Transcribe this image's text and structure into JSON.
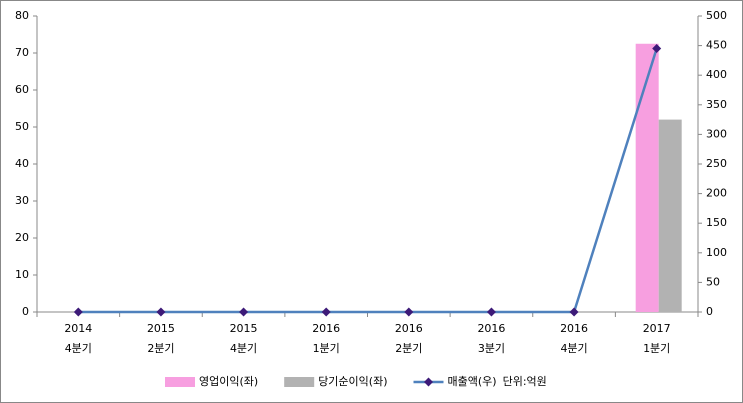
{
  "chart_data": {
    "type": "bar-line",
    "categories": [
      [
        "2014",
        "4분기"
      ],
      [
        "2015",
        "2분기"
      ],
      [
        "2015",
        "4분기"
      ],
      [
        "2016",
        "1분기"
      ],
      [
        "2016",
        "2분기"
      ],
      [
        "2016",
        "3분기"
      ],
      [
        "2016",
        "4분기"
      ],
      [
        "2017",
        "1분기"
      ]
    ],
    "series": [
      {
        "name": "영업이익(좌)",
        "type": "bar",
        "color": "#f79fe0",
        "values": [
          0,
          0,
          0,
          0,
          0,
          0,
          0,
          72.5
        ]
      },
      {
        "name": "당기순이익(좌)",
        "type": "bar",
        "color": "#b2b2b2",
        "values": [
          0,
          0,
          0,
          0,
          0,
          0,
          0,
          52
        ]
      },
      {
        "name": "매출액(우)",
        "type": "line",
        "axis": "y2",
        "color": "#4f81bd",
        "marker_color": "#3d1a78",
        "values": [
          0,
          0,
          0,
          0,
          0,
          0,
          0,
          445
        ]
      }
    ],
    "annotation": "단위:억원",
    "ylim": [
      0,
      80
    ],
    "yticks": [
      0,
      10,
      20,
      30,
      40,
      50,
      60,
      70,
      80
    ],
    "y2lim": [
      0,
      500
    ],
    "y2ticks": [
      0,
      50,
      100,
      150,
      200,
      250,
      300,
      350,
      400,
      450,
      500
    ],
    "grid": false
  }
}
